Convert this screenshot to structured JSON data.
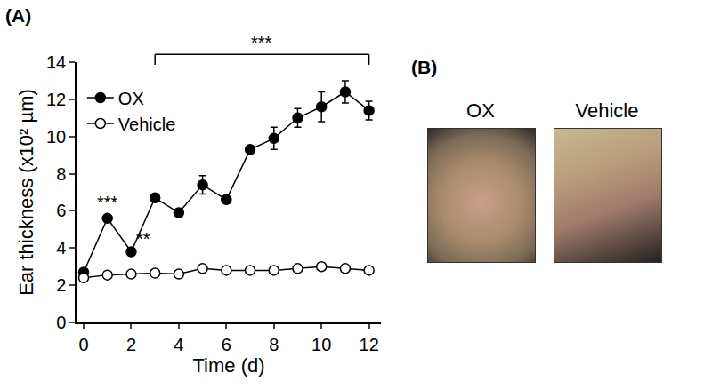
{
  "chart_data": {
    "type": "line",
    "x_title": "Time (d)",
    "y_title": "Ear thickness (x10² µm)",
    "x": [
      0,
      1,
      2,
      3,
      4,
      5,
      6,
      7,
      8,
      9,
      10,
      11,
      12
    ],
    "series": [
      {
        "name": "OX",
        "color": "#000000",
        "marker": "filled_circle",
        "values": [
          2.7,
          5.6,
          3.8,
          6.7,
          5.9,
          7.4,
          6.6,
          9.3,
          9.9,
          11.0,
          11.6,
          12.4,
          11.4
        ],
        "errors": [
          0.1,
          0.15,
          0.15,
          0.15,
          0.15,
          0.5,
          0.1,
          0.2,
          0.6,
          0.5,
          0.8,
          0.6,
          0.5
        ]
      },
      {
        "name": "Vehicle",
        "color": "#000000",
        "marker": "open_circle",
        "values": [
          2.4,
          2.55,
          2.6,
          2.65,
          2.6,
          2.9,
          2.8,
          2.8,
          2.8,
          2.9,
          3.0,
          2.9,
          2.8
        ],
        "errors": [
          0.05,
          0.05,
          0.05,
          0.05,
          0.05,
          0.1,
          0.05,
          0.05,
          0.05,
          0.05,
          0.1,
          0.05,
          0.05
        ]
      }
    ],
    "xlim": [
      -0.3,
      12.5
    ],
    "xticks": [
      0,
      2,
      4,
      6,
      8,
      10,
      12
    ],
    "ylim": [
      0,
      14
    ],
    "yticks": [
      0,
      2,
      4,
      6,
      8,
      10,
      12,
      14
    ],
    "grid": false,
    "legend": "top-left",
    "annotations": [
      {
        "x": 1,
        "series": "OX",
        "text": "***"
      },
      {
        "x": 2,
        "series": "OX",
        "text": "**"
      }
    ],
    "bracket": {
      "x0": 3,
      "x1": 12,
      "text": "***"
    }
  },
  "panel_labels": [
    "(A)",
    "(B)"
  ],
  "photos": [
    "OX",
    "Vehicle"
  ]
}
